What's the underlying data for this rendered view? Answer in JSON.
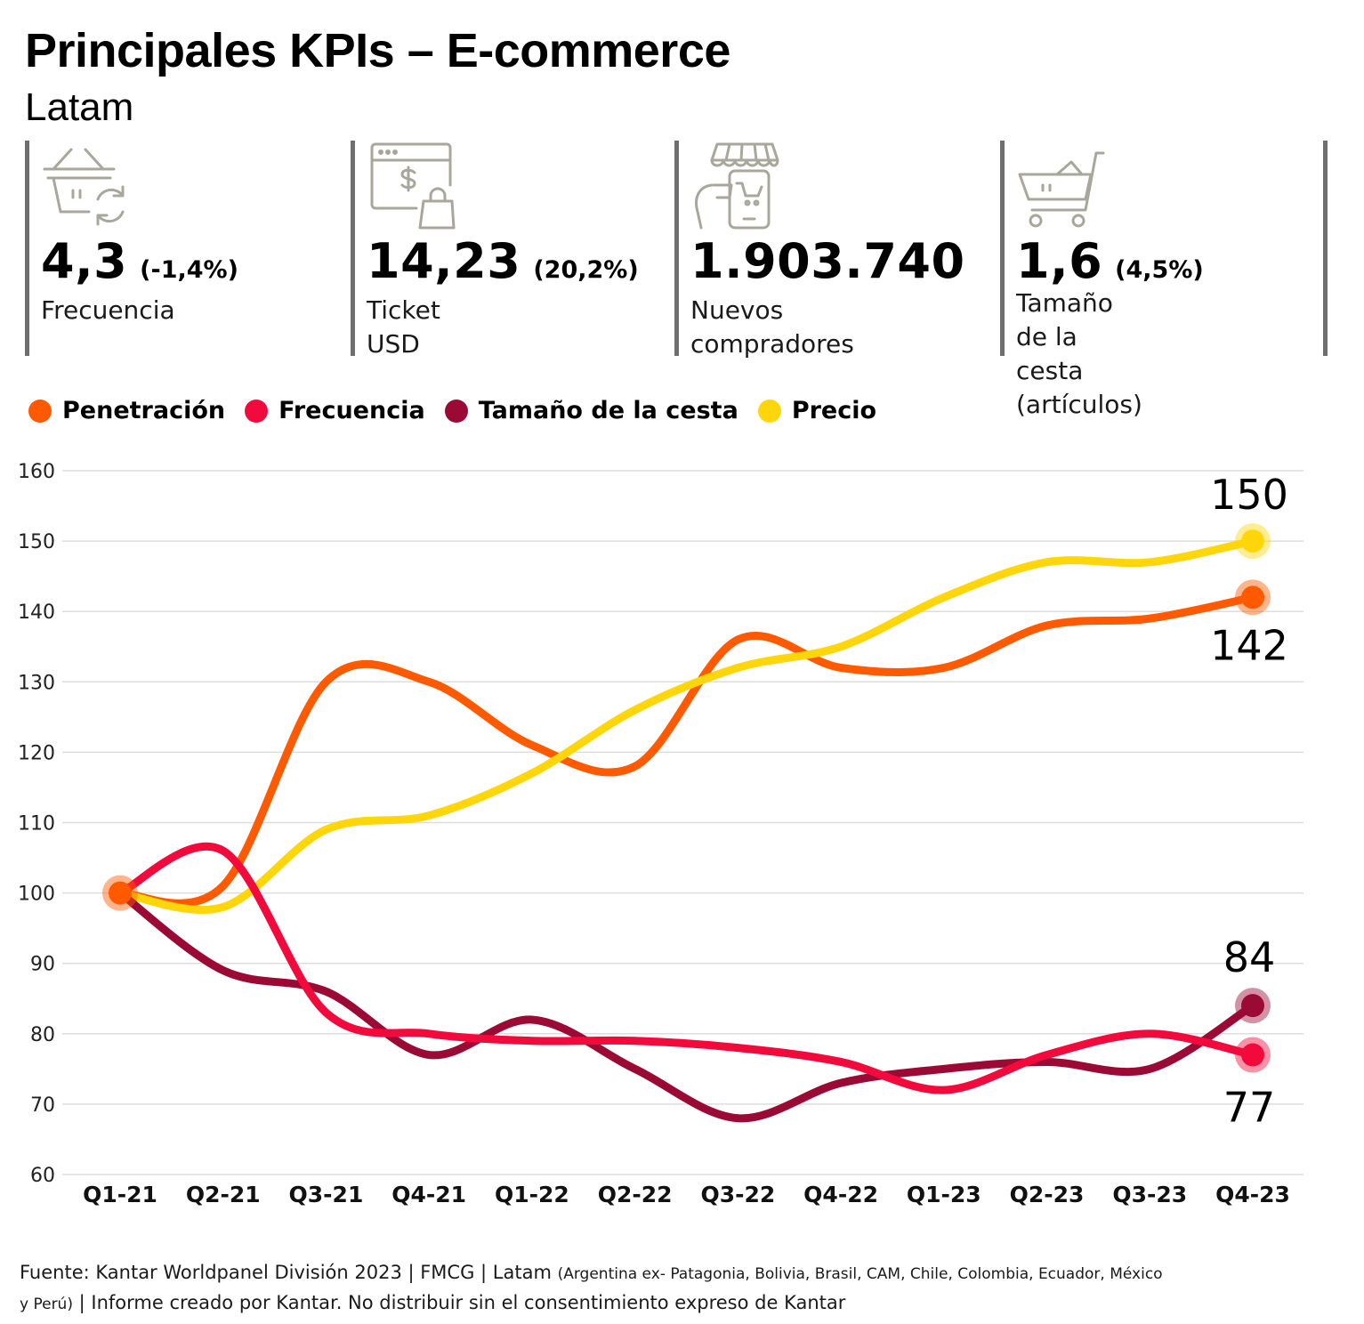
{
  "header": {
    "title": "Principales KPIs – E-commerce",
    "subtitle": "Latam"
  },
  "kpis": [
    {
      "icon": "shopping-basket-refresh-icon",
      "value": "4,3",
      "change": "(-1,4%)",
      "label": [
        "Frecuencia"
      ]
    },
    {
      "icon": "browser-dollar-bag-icon",
      "value": "14,23",
      "change": "(20,2%)",
      "label": [
        "Ticket USD"
      ]
    },
    {
      "icon": "store-phone-cart-icon",
      "value": "1.903.740",
      "change": "",
      "label": [
        "Nuevos compradores"
      ]
    },
    {
      "icon": "shopping-cart-icon",
      "value": "1,6",
      "change": "(4,5%)",
      "label": [
        "Tamaño de la cesta",
        "(artículos)"
      ]
    }
  ],
  "colors": {
    "Penetración": "#ff5a00",
    "Frecuencia": "#f20a3c",
    "Tamaño de la cesta": "#9b0a35",
    "Precio": "#ffd60a",
    "icon": "#a9a79b",
    "grid": "#dddddd"
  },
  "chart_data": {
    "type": "line",
    "categories": [
      "Q1-21",
      "Q2-21",
      "Q3-21",
      "Q4-21",
      "Q1-22",
      "Q2-22",
      "Q3-22",
      "Q4-22",
      "Q1-23",
      "Q2-23",
      "Q3-23",
      "Q4-23"
    ],
    "series": [
      {
        "name": "Penetración",
        "values": [
          100,
          101,
          130,
          130,
          121,
          118,
          136,
          132,
          132,
          138,
          139,
          142
        ]
      },
      {
        "name": "Frecuencia",
        "values": [
          100,
          106,
          83,
          80,
          79,
          79,
          78,
          76,
          72,
          77,
          80,
          77
        ]
      },
      {
        "name": "Tamaño de la cesta",
        "values": [
          100,
          89,
          86,
          77,
          82,
          75,
          68,
          73,
          75,
          76,
          75,
          84
        ]
      },
      {
        "name": "Precio",
        "values": [
          100,
          98,
          109,
          111,
          117,
          126,
          132,
          135,
          142,
          147,
          147,
          150
        ]
      }
    ],
    "end_labels": [
      {
        "series": "Precio",
        "text": "150"
      },
      {
        "series": "Penetración",
        "text": "142"
      },
      {
        "series": "Tamaño de la cesta",
        "text": "84"
      },
      {
        "series": "Frecuencia",
        "text": "77"
      }
    ],
    "ylim": [
      60,
      160
    ],
    "yticks": [
      60,
      70,
      80,
      90,
      100,
      110,
      120,
      130,
      140,
      150,
      160
    ],
    "grid": true,
    "legend": "top-left"
  },
  "footnote": {
    "main": "Fuente: Kantar Worldpanel División 2023 | FMCG | Latam ",
    "detail": "(Argentina ex- Patagonia, Bolivia, Brasil, CAM, Chile, Colombia, Ecuador, México y Perú)",
    "tail": " | Informe creado por Kantar. No distribuir sin el consentimiento expreso de Kantar"
  }
}
